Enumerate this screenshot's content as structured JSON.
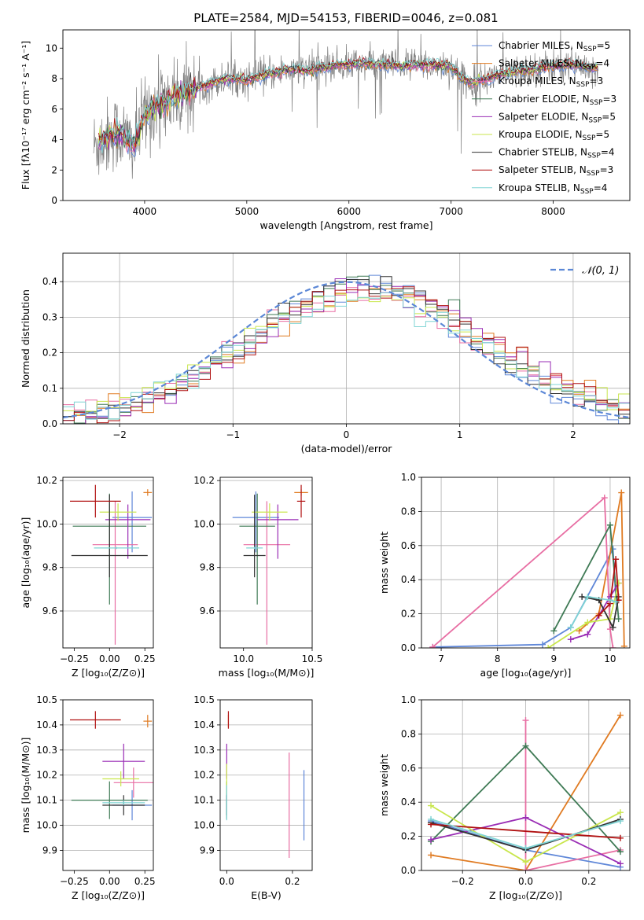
{
  "figure_title": "PLATE=2584, MJD=54153, FIBERID=0046, z=0.081",
  "colors": {
    "Chabrier MILES": "#5f87d8",
    "Salpeter MILES": "#e07b22",
    "Kroupa MILES": "#e86ea3",
    "Chabrier ELODIE": "#3f7a55",
    "Salpeter ELODIE": "#9a2db5",
    "Kroupa ELODIE": "#c9e64c",
    "Chabrier STELIB": "#333333",
    "Salpeter STELIB": "#b01010",
    "Kroupa STELIB": "#7fd4d4",
    "data": "#7f7f7f",
    "gaussian": "#5b87d6"
  },
  "chart_data": [
    {
      "id": "spectrum",
      "type": "line",
      "xlabel": "wavelength [Angstrom, rest frame]",
      "ylabel": "Flux [fλ10⁻¹⁷ erg cm⁻² s⁻¹ A⁻¹]",
      "xlim": [
        3200,
        8750
      ],
      "ylim": [
        0,
        11.2
      ],
      "xticks": [
        4000,
        5000,
        6000,
        7000,
        8000
      ],
      "yticks": [
        0,
        2,
        4,
        6,
        8,
        10
      ],
      "legend_position": "top-right",
      "legend": [
        {
          "model": "Chabrier MILES",
          "base": "Chabrier MILES, N",
          "sub": "SSP",
          "tail": "=5"
        },
        {
          "model": "Salpeter MILES",
          "base": "Salpeter MILES, N",
          "sub": "SSP",
          "tail": "=4"
        },
        {
          "model": "Kroupa MILES",
          "base": "Kroupa MILES, N",
          "sub": "SSP",
          "tail": "=3"
        },
        {
          "model": "Chabrier ELODIE",
          "base": "Chabrier ELODIE, N",
          "sub": "SSP",
          "tail": "=3"
        },
        {
          "model": "Salpeter ELODIE",
          "base": "Salpeter ELODIE, N",
          "sub": "SSP",
          "tail": "=5"
        },
        {
          "model": "Kroupa ELODIE",
          "base": "Kroupa ELODIE, N",
          "sub": "SSP",
          "tail": "=5"
        },
        {
          "model": "Chabrier STELIB",
          "base": "Chabrier STELIB, N",
          "sub": "SSP",
          "tail": "=4"
        },
        {
          "model": "Salpeter STELIB",
          "base": "Salpeter STELIB, N",
          "sub": "SSP",
          "tail": "=3"
        },
        {
          "model": "Kroupa STELIB",
          "base": "Kroupa STELIB, N",
          "sub": "SSP",
          "tail": "=4"
        }
      ],
      "continuum": {
        "x": [
          3500,
          3600,
          3700,
          3800,
          3900,
          4000,
          4100,
          4200,
          4300,
          4400,
          4500,
          4600,
          4700,
          4800,
          4900,
          5000,
          5100,
          5200,
          5300,
          5400,
          5500,
          5600,
          5700,
          5800,
          5900,
          6000,
          6100,
          6200,
          6300,
          6400,
          6500,
          6600,
          6700,
          6800,
          6900,
          7000,
          7100,
          7200,
          7300,
          7400,
          7500,
          7600,
          7700,
          7800,
          7900,
          8000,
          8100,
          8200,
          8300,
          8400
        ],
        "y": [
          3.5,
          4.0,
          4.5,
          4.2,
          3.6,
          5.6,
          6.2,
          6.4,
          6.8,
          7.0,
          7.3,
          7.6,
          7.8,
          8.0,
          8.0,
          7.9,
          8.1,
          8.3,
          8.4,
          8.6,
          8.6,
          8.5,
          8.7,
          8.8,
          8.9,
          8.9,
          9.0,
          9.0,
          8.9,
          8.9,
          8.8,
          8.9,
          8.9,
          8.9,
          8.9,
          8.8,
          8.0,
          7.7,
          7.9,
          8.1,
          8.3,
          8.4,
          8.5,
          8.6,
          8.7,
          8.8,
          8.9,
          8.9,
          8.8,
          8.7
        ]
      }
    },
    {
      "id": "residuals",
      "type": "histogram",
      "xlabel": "(data-model)/error",
      "ylabel": "Normed distribution",
      "xlim": [
        -2.5,
        2.5
      ],
      "ylim": [
        0,
        0.48
      ],
      "xticks": [
        -2,
        -1,
        0,
        1,
        2
      ],
      "yticks": [
        0.0,
        0.1,
        0.2,
        0.3,
        0.4
      ],
      "grid": true,
      "legend_position": "top-right",
      "legend_label": "𝒩(0, 1)",
      "gaussian": {
        "mean": 0,
        "sigma": 1
      },
      "bin_width": 0.1
    },
    {
      "id": "age-vs-Z",
      "type": "scatter",
      "xlabel": "Z [log₁₀(Z/Z⊙)]",
      "ylabel": "age  [log₁₀(age/yr)]",
      "xlim": [
        -0.33,
        0.31
      ],
      "ylim": [
        9.43,
        10.215
      ],
      "xticks": [
        -0.25,
        0.0,
        0.25
      ],
      "yticks": [
        9.6,
        9.8,
        10.0,
        10.2
      ],
      "points": [
        {
          "model": "Chabrier MILES",
          "x": 0.16,
          "y": 10.03,
          "xerr": 0.14,
          "yerr": [
            0.16,
            0.12
          ]
        },
        {
          "model": "Salpeter MILES",
          "x": 0.27,
          "y": 10.145,
          "xerr": 0.03,
          "yerr": 0.015
        },
        {
          "model": "Kroupa MILES",
          "x": 0.04,
          "y": 9.905,
          "xerr": 0.16,
          "yerr": [
            0.46,
            0.2
          ]
        },
        {
          "model": "Chabrier ELODIE",
          "x": 0.0,
          "y": 9.99,
          "xerr": 0.26,
          "yerr": [
            0.36,
            0.15
          ]
        },
        {
          "model": "Salpeter ELODIE",
          "x": 0.13,
          "y": 10.02,
          "xerr": 0.16,
          "yerr": [
            0.18,
            0.07
          ]
        },
        {
          "model": "Kroupa ELODIE",
          "x": 0.06,
          "y": 10.055,
          "xerr": 0.13,
          "yerr": 0.04
        },
        {
          "model": "Chabrier STELIB",
          "x": 0.0,
          "y": 9.855,
          "xerr": 0.27,
          "yerr": [
            0.1,
            0.28
          ]
        },
        {
          "model": "Salpeter STELIB",
          "x": -0.1,
          "y": 10.105,
          "xerr": 0.18,
          "yerr": 0.075
        },
        {
          "model": "Kroupa STELIB",
          "x": 0.05,
          "y": 9.89,
          "xerr": 0.16,
          "yerr": 0.005
        }
      ]
    },
    {
      "id": "age-vs-mass",
      "type": "scatter",
      "xlabel": "mass [log₁₀(M/M⊙)]",
      "ylabel": "",
      "xlim": [
        9.83,
        10.5
      ],
      "ylim": [
        9.43,
        10.215
      ],
      "xticks": [
        10.0,
        10.5
      ],
      "yticks": [
        9.6,
        9.8,
        10.0,
        10.2
      ],
      "points": [
        {
          "model": "Chabrier MILES",
          "x": 10.09,
          "y": 10.03,
          "xerr": 0.17,
          "yerr": [
            0.16,
            0.12
          ]
        },
        {
          "model": "Salpeter MILES",
          "x": 10.42,
          "y": 10.145,
          "xerr": 0.05,
          "yerr": 0.015
        },
        {
          "model": "Kroupa MILES",
          "x": 10.17,
          "y": 9.905,
          "xerr": 0.17,
          "yerr": [
            0.46,
            0.2
          ]
        },
        {
          "model": "Chabrier ELODIE",
          "x": 10.1,
          "y": 9.99,
          "xerr": 0.13,
          "yerr": [
            0.36,
            0.15
          ]
        },
        {
          "model": "Salpeter ELODIE",
          "x": 10.25,
          "y": 10.02,
          "xerr": 0.15,
          "yerr": [
            0.18,
            0.07
          ]
        },
        {
          "model": "Kroupa ELODIE",
          "x": 10.19,
          "y": 10.055,
          "xerr": 0.13,
          "yerr": 0.04
        },
        {
          "model": "Chabrier STELIB",
          "x": 10.08,
          "y": 9.855,
          "xerr": 0.08,
          "yerr": [
            0.1,
            0.28
          ]
        },
        {
          "model": "Salpeter STELIB",
          "x": 10.42,
          "y": 10.105,
          "xerr": 0.03,
          "yerr": 0.075
        },
        {
          "model": "Kroupa STELIB",
          "x": 10.08,
          "y": 9.89,
          "xerr": 0.06,
          "yerr": 0.005
        }
      ]
    },
    {
      "id": "weight-vs-age",
      "type": "line",
      "xlabel": "age  [log₁₀(age/yr)]",
      "ylabel": "mass weight",
      "xlim": [
        6.65,
        10.35
      ],
      "ylim": [
        0,
        1
      ],
      "xticks": [
        7,
        8,
        9,
        10
      ],
      "yticks": [
        0.0,
        0.2,
        0.4,
        0.6,
        0.8,
        1.0
      ],
      "grid": true,
      "series": [
        {
          "model": "Chabrier MILES",
          "x": [
            6.85,
            8.8,
            9.3,
            10.05,
            10.1
          ],
          "y": [
            0.005,
            0.02,
            0.12,
            0.58,
            0.3
          ]
        },
        {
          "model": "Salpeter MILES",
          "x": [
            9.45,
            9.8,
            10.2,
            10.25
          ],
          "y": [
            0.1,
            0.2,
            0.91,
            0.01
          ]
        },
        {
          "model": "Kroupa MILES",
          "x": [
            6.85,
            9.9,
            10.0,
            10.05
          ],
          "y": [
            0.005,
            0.88,
            0.11,
            0.0
          ]
        },
        {
          "model": "Chabrier ELODIE",
          "x": [
            9.0,
            10.0,
            10.15
          ],
          "y": [
            0.1,
            0.72,
            0.17
          ]
        },
        {
          "model": "Salpeter ELODIE",
          "x": [
            9.3,
            9.6,
            10.0,
            10.15
          ],
          "y": [
            0.05,
            0.08,
            0.3,
            0.38
          ]
        },
        {
          "model": "Kroupa ELODIE",
          "x": [
            8.9,
            9.6,
            10.0,
            10.15
          ],
          "y": [
            0.0,
            0.15,
            0.17,
            0.38
          ]
        },
        {
          "model": "Chabrier STELIB",
          "x": [
            9.5,
            9.8,
            10.05,
            10.15
          ],
          "y": [
            0.3,
            0.28,
            0.12,
            0.3
          ]
        },
        {
          "model": "Salpeter STELIB",
          "x": [
            9.8,
            10.0,
            10.1,
            10.15
          ],
          "y": [
            0.19,
            0.26,
            0.52,
            0.28
          ]
        },
        {
          "model": "Kroupa STELIB",
          "x": [
            9.3,
            9.6,
            10.0,
            10.1
          ],
          "y": [
            0.12,
            0.3,
            0.28,
            0.27
          ]
        }
      ]
    },
    {
      "id": "mass-vs-Z",
      "type": "scatter",
      "xlabel": "Z [log₁₀(Z/Z⊙)]",
      "ylabel": "mass [log₁₀(M/M⊙)]",
      "xlim": [
        -0.33,
        0.31
      ],
      "ylim": [
        9.82,
        10.5
      ],
      "xticks": [
        -0.25,
        0.0,
        0.25
      ],
      "yticks": [
        9.9,
        10.0,
        10.1,
        10.2,
        10.3,
        10.4,
        10.5
      ],
      "points": [
        {
          "model": "Chabrier MILES",
          "x": 0.16,
          "y": 10.08,
          "xerr": 0.14,
          "yerr": 0.06
        },
        {
          "model": "Salpeter MILES",
          "x": 0.27,
          "y": 10.415,
          "xerr": 0.03,
          "yerr": 0.025
        },
        {
          "model": "Kroupa MILES",
          "x": 0.17,
          "y": 10.17,
          "xerr": 0.14,
          "yerr": 0.06
        },
        {
          "model": "Chabrier ELODIE",
          "x": 0.0,
          "y": 10.1,
          "xerr": 0.27,
          "yerr": 0.075
        },
        {
          "model": "Salpeter ELODIE",
          "x": 0.1,
          "y": 10.255,
          "xerr": 0.15,
          "yerr": 0.07
        },
        {
          "model": "Kroupa ELODIE",
          "x": 0.08,
          "y": 10.185,
          "xerr": 0.13,
          "yerr": 0.03
        },
        {
          "model": "Chabrier STELIB",
          "x": 0.1,
          "y": 10.08,
          "xerr": 0.15,
          "yerr": 0.04
        },
        {
          "model": "Salpeter STELIB",
          "x": -0.1,
          "y": 10.42,
          "xerr": 0.18,
          "yerr": 0.035
        },
        {
          "model": "Kroupa STELIB",
          "x": 0.1,
          "y": 10.09,
          "xerr": 0.15,
          "yerr": 0.01
        }
      ]
    },
    {
      "id": "mass-vs-ebv",
      "type": "scatter",
      "xlabel": "E(B-V)",
      "ylabel": "",
      "xlim": [
        -0.02,
        0.26
      ],
      "ylim": [
        9.82,
        10.5
      ],
      "xticks": [
        0.0,
        0.2
      ],
      "yticks": [
        9.9,
        10.0,
        10.1,
        10.2,
        10.3,
        10.4,
        10.5
      ],
      "points": [
        {
          "model": "Chabrier MILES",
          "x": 0.235,
          "y": 10.08,
          "xerr": 0.0,
          "yerr": 0.14
        },
        {
          "model": "Salpeter MILES",
          "x": 0.005,
          "y": 10.415,
          "xerr": 0.0,
          "yerr": 0.025
        },
        {
          "model": "Kroupa MILES",
          "x": 0.19,
          "y": 10.08,
          "xerr": 0.0,
          "yerr": 0.21
        },
        {
          "model": "Chabrier ELODIE",
          "x": 0.0,
          "y": 10.1,
          "xerr": 0.0,
          "yerr": 0.075
        },
        {
          "model": "Salpeter ELODIE",
          "x": 0.0,
          "y": 10.255,
          "xerr": 0.0,
          "yerr": 0.07
        },
        {
          "model": "Kroupa ELODIE",
          "x": 0.0,
          "y": 10.185,
          "xerr": 0.0,
          "yerr": 0.06
        },
        {
          "model": "Chabrier STELIB",
          "x": 0.0,
          "y": 10.08,
          "xerr": 0.0,
          "yerr": 0.04
        },
        {
          "model": "Salpeter STELIB",
          "x": 0.005,
          "y": 10.42,
          "xerr": 0.0,
          "yerr": 0.035
        },
        {
          "model": "Kroupa STELIB",
          "x": 0.0,
          "y": 10.09,
          "xerr": 0.0,
          "yerr": 0.07
        }
      ]
    },
    {
      "id": "weight-vs-Z",
      "type": "line",
      "xlabel": "Z [log₁₀(Z/Z⊙)]",
      "ylabel": "mass weight",
      "xlim": [
        -0.33,
        0.33
      ],
      "ylim": [
        0,
        1
      ],
      "xticks": [
        -0.2,
        0.0,
        0.2
      ],
      "yticks": [
        0.0,
        0.2,
        0.4,
        0.6,
        0.8,
        1.0
      ],
      "grid": true,
      "series": [
        {
          "model": "Chabrier MILES",
          "x": [
            -0.3,
            0.0,
            0.3
          ],
          "y": [
            0.29,
            0.12,
            0.02
          ]
        },
        {
          "model": "Salpeter MILES",
          "x": [
            -0.3,
            0.0,
            0.3
          ],
          "y": [
            0.09,
            0.0,
            0.91
          ]
        },
        {
          "model": "Kroupa MILES",
          "x": [
            0.0,
            0.0,
            0.3
          ],
          "y": [
            0.88,
            0.0,
            0.12
          ]
        },
        {
          "model": "Chabrier ELODIE",
          "x": [
            -0.3,
            0.0,
            0.3
          ],
          "y": [
            0.17,
            0.73,
            0.11
          ]
        },
        {
          "model": "Salpeter ELODIE",
          "x": [
            -0.3,
            0.0,
            0.3
          ],
          "y": [
            0.18,
            0.31,
            0.04
          ]
        },
        {
          "model": "Kroupa ELODIE",
          "x": [
            -0.3,
            0.0,
            0.3
          ],
          "y": [
            0.38,
            0.05,
            0.34
          ]
        },
        {
          "model": "Chabrier STELIB",
          "x": [
            -0.3,
            0.0,
            0.3
          ],
          "y": [
            0.28,
            0.12,
            0.3
          ]
        },
        {
          "model": "Salpeter STELIB",
          "x": [
            -0.3,
            0.3
          ],
          "y": [
            0.27,
            0.19
          ]
        },
        {
          "model": "Kroupa STELIB",
          "x": [
            -0.3,
            0.0,
            0.3
          ],
          "y": [
            0.3,
            0.13,
            0.29
          ]
        }
      ]
    }
  ]
}
